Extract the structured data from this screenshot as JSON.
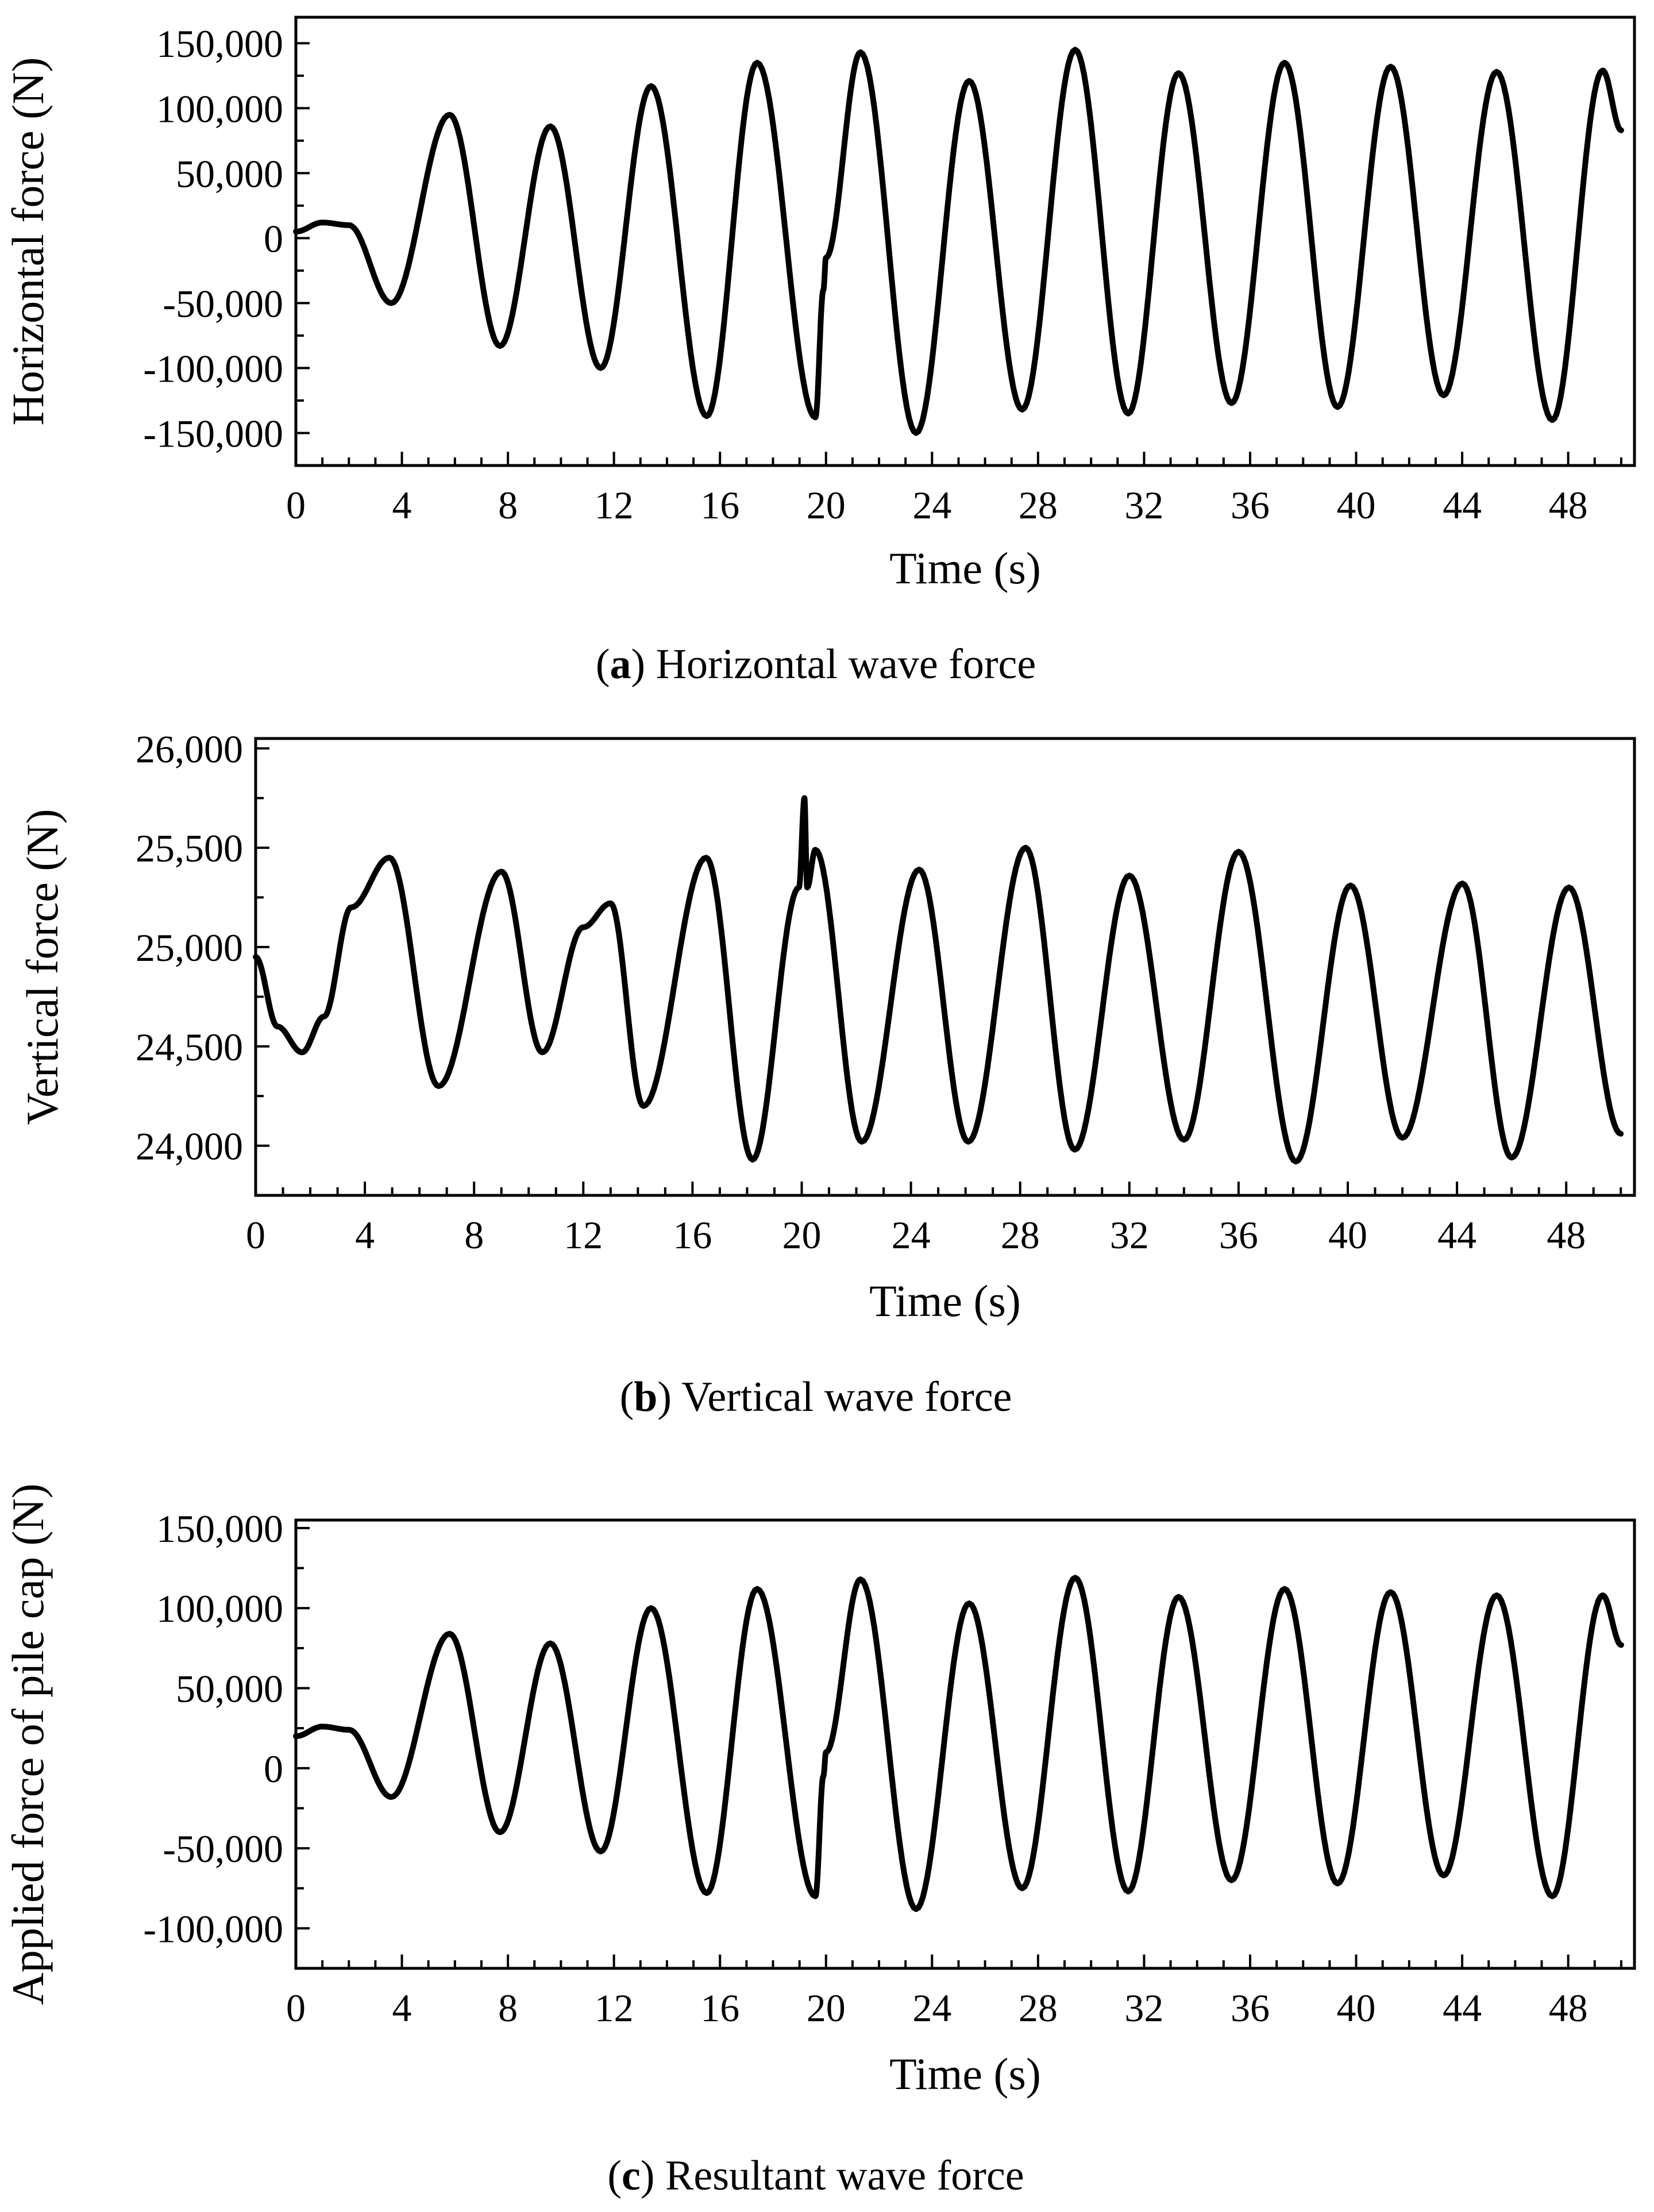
{
  "chart_data": [
    {
      "id": "a",
      "type": "line",
      "xlabel": "Time (s)",
      "ylabel": "Horizontal force (N)",
      "xlim": [
        0,
        50.5
      ],
      "ylim": [
        -175000,
        170000
      ],
      "xticks": [
        0,
        4,
        8,
        12,
        16,
        20,
        24,
        28,
        32,
        36,
        40,
        44,
        48
      ],
      "yticks": [
        -150000,
        -100000,
        -50000,
        0,
        50000,
        100000,
        150000
      ],
      "ytick_labels": [
        "-150,000",
        "-100,000",
        "-50,000",
        "0",
        "50,000",
        "100,000",
        "150,000"
      ],
      "caption_letter": "a",
      "caption_text": " Horizontal wave force",
      "series": [
        {
          "x": [
            0,
            1.0,
            2.0,
            3.6,
            5.8,
            7.7,
            9.6,
            11.5,
            13.4,
            15.5,
            17.4,
            19.6,
            19.9,
            20.0,
            21.3,
            23.4,
            25.4,
            27.4,
            29.4,
            31.4,
            33.3,
            35.3,
            37.3,
            39.3,
            41.3,
            43.3,
            45.3,
            47.4,
            49.3,
            50.0
          ],
          "y": [
            5000,
            12000,
            10000,
            -50000,
            95000,
            -83000,
            86000,
            -100000,
            117000,
            -137000,
            135000,
            -138000,
            -40000,
            -15000,
            143000,
            -150000,
            121000,
            -132000,
            145000,
            -135000,
            127000,
            -127000,
            135000,
            -130000,
            132000,
            -121000,
            128000,
            -140000,
            129000,
            83000
          ]
        }
      ]
    },
    {
      "id": "b",
      "type": "line",
      "xlabel": "Time (s)",
      "ylabel": "Vertical force (N)",
      "xlim": [
        0,
        50.5
      ],
      "ylim": [
        23750,
        26050
      ],
      "xticks": [
        0,
        4,
        8,
        12,
        16,
        20,
        24,
        28,
        32,
        36,
        40,
        44,
        48
      ],
      "yticks": [
        24000,
        24500,
        25000,
        25500,
        26000
      ],
      "ytick_labels": [
        "24,000",
        "24,500",
        "25,000",
        "25,500",
        "26,000"
      ],
      "caption_letter": "b",
      "caption_text": " Vertical wave force",
      "series": [
        {
          "x": [
            0,
            0.8,
            1.7,
            2.5,
            3.5,
            4.9,
            6.7,
            9.0,
            10.5,
            12.0,
            13.0,
            14.2,
            16.5,
            18.2,
            19.9,
            20.1,
            20.2,
            20.5,
            22.2,
            24.3,
            26.1,
            28.2,
            30.0,
            32.0,
            34.0,
            36.0,
            38.1,
            40.1,
            42.0,
            44.2,
            46.0,
            48.1,
            50.0
          ],
          "y": [
            24950,
            24600,
            24470,
            24650,
            25200,
            25450,
            24300,
            25380,
            24470,
            25100,
            25220,
            24200,
            25450,
            23930,
            25300,
            25750,
            25300,
            25490,
            24020,
            25390,
            24020,
            25500,
            23980,
            25360,
            24030,
            25480,
            23920,
            25310,
            24040,
            25320,
            23940,
            25300,
            24060
          ]
        }
      ]
    },
    {
      "id": "c",
      "type": "line",
      "xlabel": "Time (s)",
      "ylabel": "Applied force of pile cap (N)",
      "xlim": [
        0,
        50.5
      ],
      "ylim": [
        -125000,
        155000
      ],
      "xticks": [
        0,
        4,
        8,
        12,
        16,
        20,
        24,
        28,
        32,
        36,
        40,
        44,
        48
      ],
      "yticks": [
        -100000,
        -50000,
        0,
        50000,
        100000,
        150000
      ],
      "ytick_labels": [
        "-100,000",
        "-50,000",
        "0",
        "50,000",
        "100,000",
        "150,000"
      ],
      "caption_letter": "c",
      "caption_text": " Resultant wave force",
      "series": [
        {
          "x": [
            0,
            1.0,
            2.0,
            3.6,
            5.8,
            7.7,
            9.6,
            11.5,
            13.4,
            15.5,
            17.4,
            19.6,
            19.9,
            20.0,
            21.3,
            23.4,
            25.4,
            27.4,
            29.4,
            31.4,
            33.3,
            35.3,
            37.3,
            39.3,
            41.3,
            43.3,
            45.3,
            47.4,
            49.3,
            50.0
          ],
          "y": [
            20000,
            26000,
            24000,
            -18000,
            84000,
            -40000,
            78000,
            -52000,
            100000,
            -78000,
            112000,
            -80000,
            -5000,
            10000,
            118000,
            -88000,
            103000,
            -75000,
            119000,
            -77000,
            107000,
            -70000,
            112000,
            -72000,
            110000,
            -67000,
            108000,
            -80000,
            108000,
            77000
          ]
        }
      ]
    }
  ]
}
